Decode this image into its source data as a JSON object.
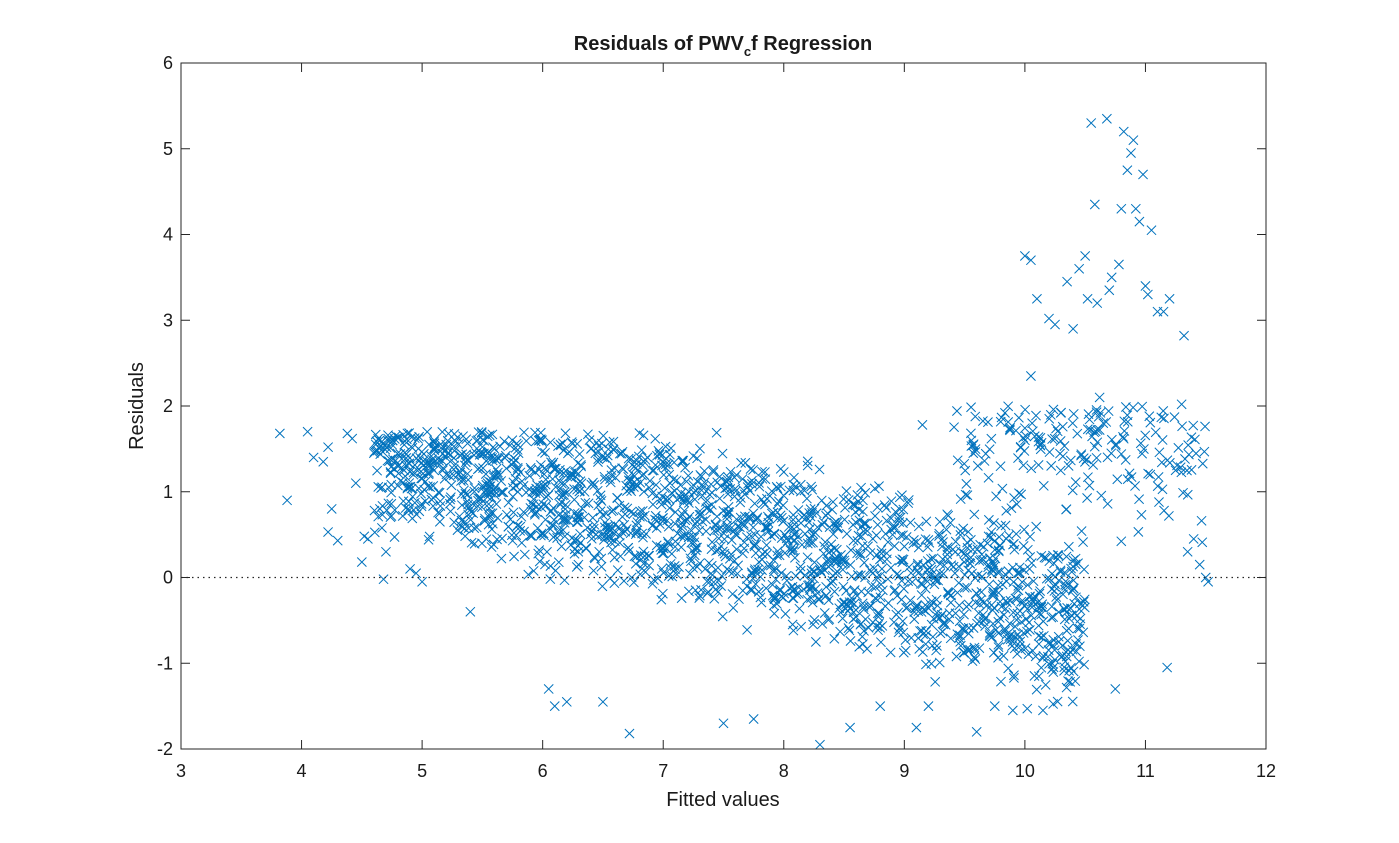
{
  "chart_data": {
    "type": "scatter",
    "title_parts": [
      "Residuals  of  PWV",
      "c",
      "f  Regression"
    ],
    "xlabel": "Fitted values",
    "ylabel": "Residuals",
    "xlim": [
      3,
      12
    ],
    "ylim": [
      -2,
      6
    ],
    "xticks": [
      "3",
      "4",
      "5",
      "6",
      "7",
      "8",
      "9",
      "10",
      "11",
      "12"
    ],
    "yticks": [
      "-2",
      "-1",
      "0",
      "1",
      "2",
      "3",
      "4",
      "5",
      "6"
    ],
    "grid": false,
    "reference_line": {
      "y": 0,
      "style": "dotted"
    },
    "marker": "x",
    "color": "#0072BD",
    "approx_point_count": 2600,
    "series": [
      {
        "points": [
          [
            3.82,
            1.68
          ],
          [
            3.88,
            0.9
          ],
          [
            4.05,
            1.7
          ],
          [
            4.1,
            1.4
          ],
          [
            4.18,
            1.35
          ],
          [
            4.22,
            1.52
          ],
          [
            4.22,
            0.53
          ],
          [
            4.25,
            0.8
          ],
          [
            4.3,
            0.43
          ],
          [
            4.38,
            1.68
          ],
          [
            4.42,
            1.62
          ],
          [
            4.45,
            1.1
          ],
          [
            4.5,
            0.18
          ],
          [
            4.52,
            0.48
          ],
          [
            4.55,
            0.45
          ],
          [
            4.6,
            1.45
          ],
          [
            4.65,
            0.8
          ],
          [
            4.68,
            -0.02
          ],
          [
            4.7,
            0.3
          ],
          [
            4.75,
            1.55
          ],
          [
            4.8,
            1.3
          ],
          [
            4.85,
            1.25
          ],
          [
            4.9,
            0.1
          ],
          [
            4.95,
            0.05
          ],
          [
            5.0,
            -0.05
          ],
          [
            5.1,
            1.6
          ],
          [
            5.2,
            1.55
          ],
          [
            5.3,
            1.2
          ],
          [
            5.4,
            -0.4
          ],
          [
            5.6,
            1.5
          ],
          [
            5.8,
            1.45
          ],
          [
            6.05,
            -1.3
          ],
          [
            6.1,
            -1.5
          ],
          [
            6.2,
            -1.45
          ],
          [
            6.5,
            -1.45
          ],
          [
            6.72,
            -1.82
          ],
          [
            7.05,
            1.2
          ],
          [
            7.5,
            -1.7
          ],
          [
            7.75,
            -1.65
          ],
          [
            8.0,
            1.23
          ],
          [
            8.3,
            -1.95
          ],
          [
            8.55,
            -1.75
          ],
          [
            8.8,
            -1.5
          ],
          [
            9.1,
            -1.75
          ],
          [
            9.15,
            1.78
          ],
          [
            9.2,
            -1.5
          ],
          [
            9.6,
            -1.8
          ],
          [
            9.75,
            -1.5
          ],
          [
            9.9,
            -1.55
          ],
          [
            10.0,
            3.75
          ],
          [
            10.05,
            3.7
          ],
          [
            10.05,
            2.35
          ],
          [
            10.1,
            3.25
          ],
          [
            10.15,
            -1.55
          ],
          [
            10.2,
            3.02
          ],
          [
            10.25,
            2.95
          ],
          [
            10.35,
            3.45
          ],
          [
            10.4,
            2.9
          ],
          [
            10.45,
            3.6
          ],
          [
            10.5,
            3.75
          ],
          [
            10.52,
            3.25
          ],
          [
            10.55,
            5.3
          ],
          [
            10.58,
            4.35
          ],
          [
            10.6,
            3.2
          ],
          [
            10.62,
            2.1
          ],
          [
            10.65,
            1.8
          ],
          [
            10.68,
            5.35
          ],
          [
            10.7,
            3.35
          ],
          [
            10.72,
            3.5
          ],
          [
            10.75,
            -1.3
          ],
          [
            10.78,
            3.65
          ],
          [
            10.8,
            4.3
          ],
          [
            10.82,
            5.2
          ],
          [
            10.85,
            4.75
          ],
          [
            10.88,
            4.95
          ],
          [
            10.9,
            5.1
          ],
          [
            10.92,
            4.3
          ],
          [
            10.95,
            4.15
          ],
          [
            10.98,
            4.7
          ],
          [
            11.0,
            3.4
          ],
          [
            11.02,
            3.3
          ],
          [
            11.05,
            4.05
          ],
          [
            11.1,
            3.1
          ],
          [
            11.15,
            3.1
          ],
          [
            11.18,
            -1.05
          ],
          [
            11.2,
            3.25
          ],
          [
            11.25,
            1.25
          ],
          [
            11.3,
            2.02
          ],
          [
            11.32,
            2.82
          ],
          [
            11.35,
            0.3
          ],
          [
            11.4,
            0.45
          ],
          [
            11.45,
            0.15
          ],
          [
            11.5,
            0.0
          ],
          [
            11.52,
            -0.05
          ]
        ]
      }
    ]
  }
}
